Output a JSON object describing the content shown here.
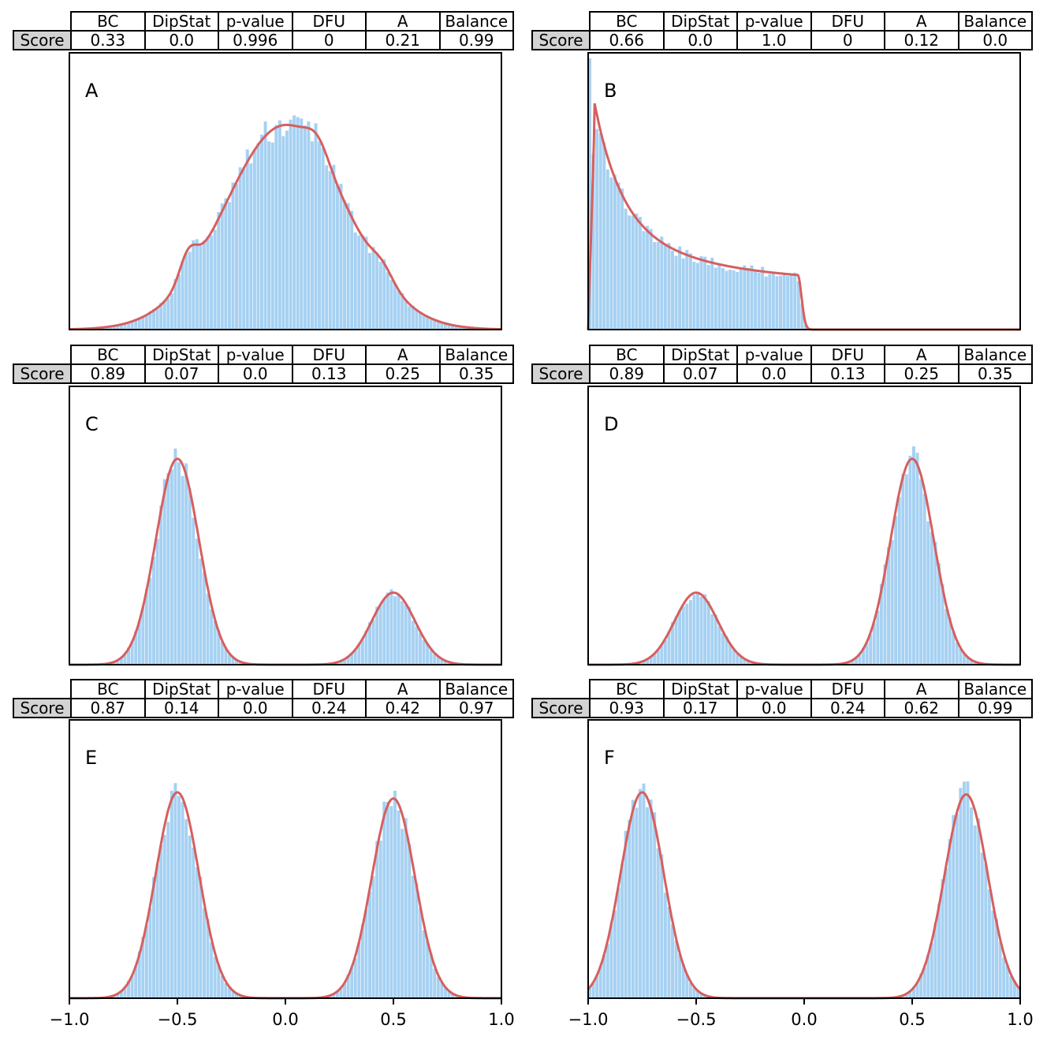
{
  "chart_data": [
    {
      "type": "histogram",
      "panel_label": "A",
      "table": {
        "row_label": "Score",
        "columns": [
          "BC",
          "DipStat",
          "p-value",
          "DFU",
          "A",
          "Balance"
        ],
        "values": [
          "0.33",
          "0.0",
          "0.996",
          "0",
          "0.21",
          "0.99"
        ]
      },
      "xlim": [
        -1.0,
        1.0
      ],
      "density": {
        "kind": "unimodal_skew",
        "mean": 0.0,
        "sd": 0.28,
        "bumps": [
          [
            -0.45,
            0.04,
            0.12
          ],
          [
            0.15,
            0.05,
            0.08
          ],
          [
            0.45,
            0.05,
            0.06
          ]
        ]
      },
      "ylim_peak": 1.0
    },
    {
      "type": "histogram",
      "panel_label": "B",
      "table": {
        "row_label": "Score",
        "columns": [
          "BC",
          "DipStat",
          "p-value",
          "DFU",
          "A",
          "Balance"
        ],
        "values": [
          "0.66",
          "0.0",
          "1.0",
          "0",
          "0.12",
          "0.0"
        ]
      },
      "xlim": [
        -1.0,
        1.0
      ],
      "density": {
        "kind": "beta_like",
        "peak_x": -0.97,
        "end_x": -0.03
      },
      "ylim_peak": 1.0
    },
    {
      "type": "histogram",
      "panel_label": "C",
      "table": {
        "row_label": "Score",
        "columns": [
          "BC",
          "DipStat",
          "p-value",
          "DFU",
          "A",
          "Balance"
        ],
        "values": [
          "0.89",
          "0.07",
          "0.0",
          "0.13",
          "0.25",
          "0.35"
        ]
      },
      "xlim": [
        -1.0,
        1.0
      ],
      "density": {
        "kind": "mixture",
        "components": [
          [
            -0.5,
            0.1,
            1.0
          ],
          [
            0.5,
            0.1,
            0.35
          ]
        ]
      },
      "ylim_peak": 1.0
    },
    {
      "type": "histogram",
      "panel_label": "D",
      "table": {
        "row_label": "Score",
        "columns": [
          "BC",
          "DipStat",
          "p-value",
          "DFU",
          "A",
          "Balance"
        ],
        "values": [
          "0.89",
          "0.07",
          "0.0",
          "0.13",
          "0.25",
          "0.35"
        ]
      },
      "xlim": [
        -1.0,
        1.0
      ],
      "density": {
        "kind": "mixture",
        "components": [
          [
            -0.5,
            0.1,
            0.35
          ],
          [
            0.5,
            0.1,
            1.0
          ]
        ]
      },
      "ylim_peak": 1.0
    },
    {
      "type": "histogram",
      "panel_label": "E",
      "table": {
        "row_label": "Score",
        "columns": [
          "BC",
          "DipStat",
          "p-value",
          "DFU",
          "A",
          "Balance"
        ],
        "values": [
          "0.87",
          "0.14",
          "0.0",
          "0.24",
          "0.42",
          "0.97"
        ]
      },
      "xlim": [
        -1.0,
        1.0
      ],
      "density": {
        "kind": "mixture",
        "components": [
          [
            -0.5,
            0.1,
            1.0
          ],
          [
            0.5,
            0.1,
            0.97
          ]
        ]
      },
      "ylim_peak": 1.0,
      "xticks": [
        "−1.0",
        "−0.5",
        "0.0",
        "0.5",
        "1.0"
      ]
    },
    {
      "type": "histogram",
      "panel_label": "F",
      "table": {
        "row_label": "Score",
        "columns": [
          "BC",
          "DipStat",
          "p-value",
          "DFU",
          "A",
          "Balance"
        ],
        "values": [
          "0.93",
          "0.17",
          "0.0",
          "0.24",
          "0.62",
          "0.99"
        ]
      },
      "xlim": [
        -1.0,
        1.0
      ],
      "density": {
        "kind": "mixture",
        "components": [
          [
            -0.75,
            0.1,
            1.0
          ],
          [
            0.75,
            0.1,
            0.99
          ]
        ]
      },
      "ylim_peak": 1.0,
      "xticks": [
        "−1.0",
        "−0.5",
        "0.0",
        "0.5",
        "1.0"
      ]
    }
  ],
  "colors": {
    "bars": "#a6d1f2",
    "curve": "#d65f5f",
    "rowhead": "#d3d3d3"
  }
}
